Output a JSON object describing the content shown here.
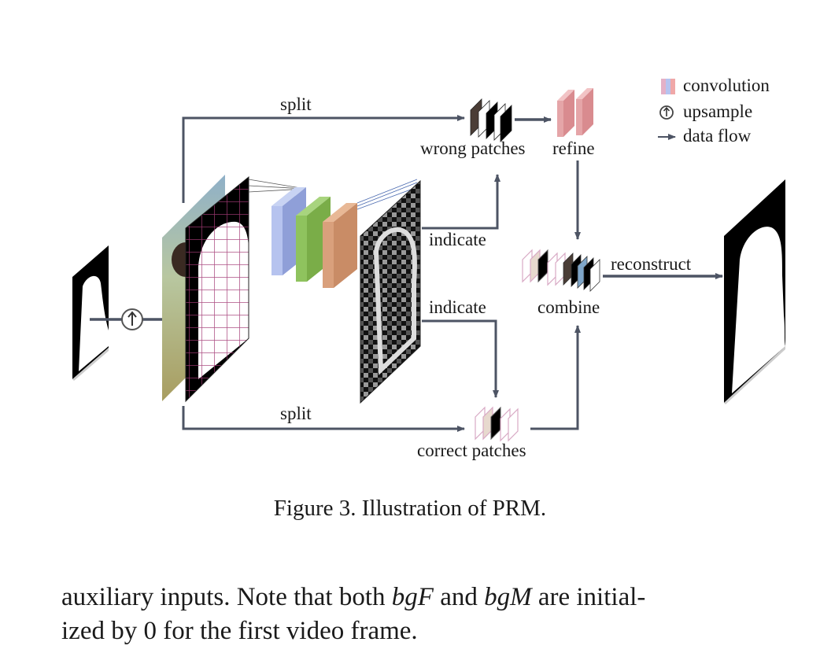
{
  "legend": {
    "convolution": "convolution",
    "upsample": "upsample",
    "data_flow": "data flow"
  },
  "labels": {
    "split_top": "split",
    "split_bottom": "split",
    "wrong_patches": "wrong patches",
    "refine": "refine",
    "indicate_top": "indicate",
    "indicate_bottom": "indicate",
    "combine": "combine",
    "reconstruct": "reconstruct",
    "correct_patches": "correct patches"
  },
  "caption": "Figure 3. Illustration of PRM.",
  "body": {
    "line1_pre": "auxiliary inputs.  Note that both ",
    "math1": "bgF",
    "line1_mid": " and ",
    "math2": "bgM",
    "line1_post": " are initial-",
    "line2": "ized by 0 for the first video frame."
  },
  "colors": {
    "arrow": "#4d5464",
    "conv_blue": "#a9b8ea",
    "conv_green": "#8fc35e",
    "conv_orange": "#d9a07c",
    "refine_pink": "#e5a5a8"
  }
}
